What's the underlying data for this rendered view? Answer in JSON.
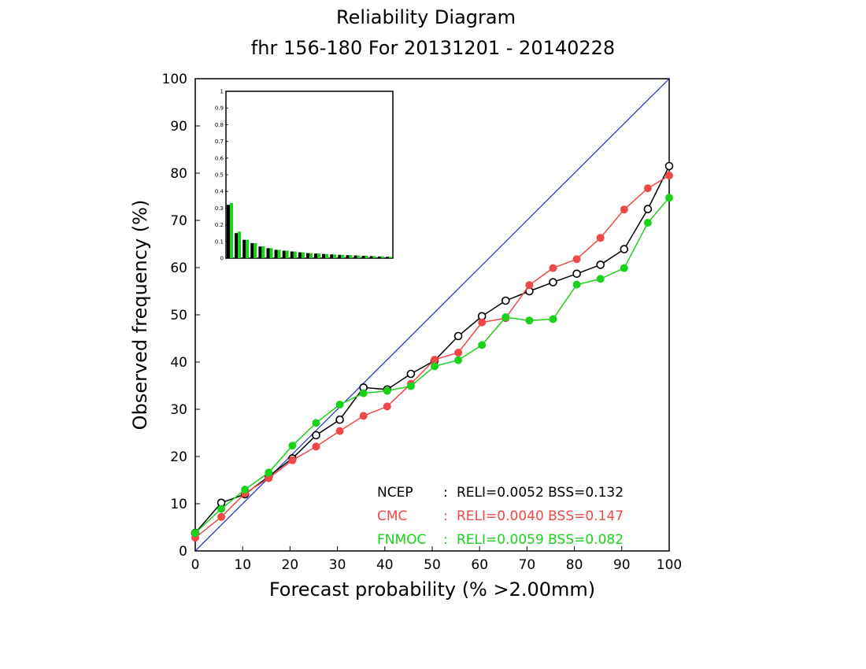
{
  "chart_data": {
    "type": "line",
    "title": "Reliability Diagram",
    "subtitle": "fhr 156-180 For 20131201 - 20140228",
    "xlabel": "Forecast probability (% >2.00mm)",
    "ylabel": "Observed frequency (%)",
    "xlim": [
      0,
      100
    ],
    "ylim": [
      0,
      100
    ],
    "x_ticks": [
      "0",
      "10",
      "20",
      "30",
      "40",
      "50",
      "60",
      "70",
      "80",
      "90",
      "100"
    ],
    "y_ticks": [
      "0",
      "10",
      "20",
      "30",
      "40",
      "50",
      "60",
      "70",
      "80",
      "90",
      "100"
    ],
    "grid": false,
    "legend_position": "bottom-right",
    "diagonal_color": "#1a2ec8",
    "x": [
      0,
      5.5,
      10.5,
      15.5,
      20.5,
      25.5,
      30.5,
      35.5,
      40.5,
      45.5,
      50.5,
      55.5,
      60.5,
      65.5,
      70.5,
      75.5,
      80.5,
      85.5,
      90.5,
      95.5,
      100
    ],
    "series": [
      {
        "name": "NCEP",
        "stats": "RELI=0.0052  BSS=0.132",
        "color": "#000000",
        "marker": "open-circle",
        "values": [
          3.8,
          10.2,
          12.0,
          15.8,
          19.6,
          24.5,
          27.8,
          34.6,
          34.2,
          37.5,
          40.3,
          45.5,
          49.7,
          53.0,
          55.0,
          56.9,
          58.7,
          60.6,
          63.9,
          72.4,
          81.5
        ]
      },
      {
        "name": "CMC",
        "stats": "RELI=0.0040  BSS=0.147",
        "color": "#f04848",
        "marker": "filled-circle",
        "values": [
          2.8,
          7.2,
          12.2,
          15.4,
          19.2,
          22.1,
          25.4,
          28.6,
          30.6,
          35.4,
          40.5,
          42.0,
          48.4,
          49.3,
          56.3,
          59.9,
          61.8,
          66.3,
          72.3,
          76.8,
          79.5
        ]
      },
      {
        "name": "FNMOC",
        "stats": "RELI=0.0059  BSS=0.082",
        "color": "#1ad21a",
        "marker": "filled-circle",
        "values": [
          3.8,
          8.9,
          13.0,
          16.6,
          22.3,
          27.1,
          31.0,
          33.4,
          33.9,
          34.9,
          39.1,
          40.4,
          43.6,
          49.5,
          48.8,
          49.1,
          56.4,
          57.6,
          59.9,
          69.5,
          74.8
        ]
      }
    ],
    "inset": {
      "type": "bar",
      "ylim": [
        0,
        1
      ],
      "y_ticks": [
        "0",
        "0.1",
        "0.2",
        "0.3",
        "0.4",
        "0.5",
        "0.6",
        "0.7",
        "0.8",
        "0.9",
        "1"
      ],
      "bin_count": 21,
      "series": [
        {
          "name": "NCEP",
          "color": "#000000",
          "values": [
            0.32,
            0.15,
            0.11,
            0.09,
            0.07,
            0.06,
            0.05,
            0.045,
            0.04,
            0.035,
            0.03,
            0.028,
            0.025,
            0.022,
            0.02,
            0.018,
            0.016,
            0.014,
            0.012,
            0.01,
            0.008
          ]
        },
        {
          "name": "FNMOC",
          "color": "#1ad21a",
          "values": [
            0.33,
            0.16,
            0.11,
            0.09,
            0.07,
            0.06,
            0.05,
            0.045,
            0.04,
            0.035,
            0.03,
            0.028,
            0.025,
            0.022,
            0.02,
            0.018,
            0.016,
            0.014,
            0.012,
            0.01,
            0.008
          ]
        }
      ]
    }
  }
}
